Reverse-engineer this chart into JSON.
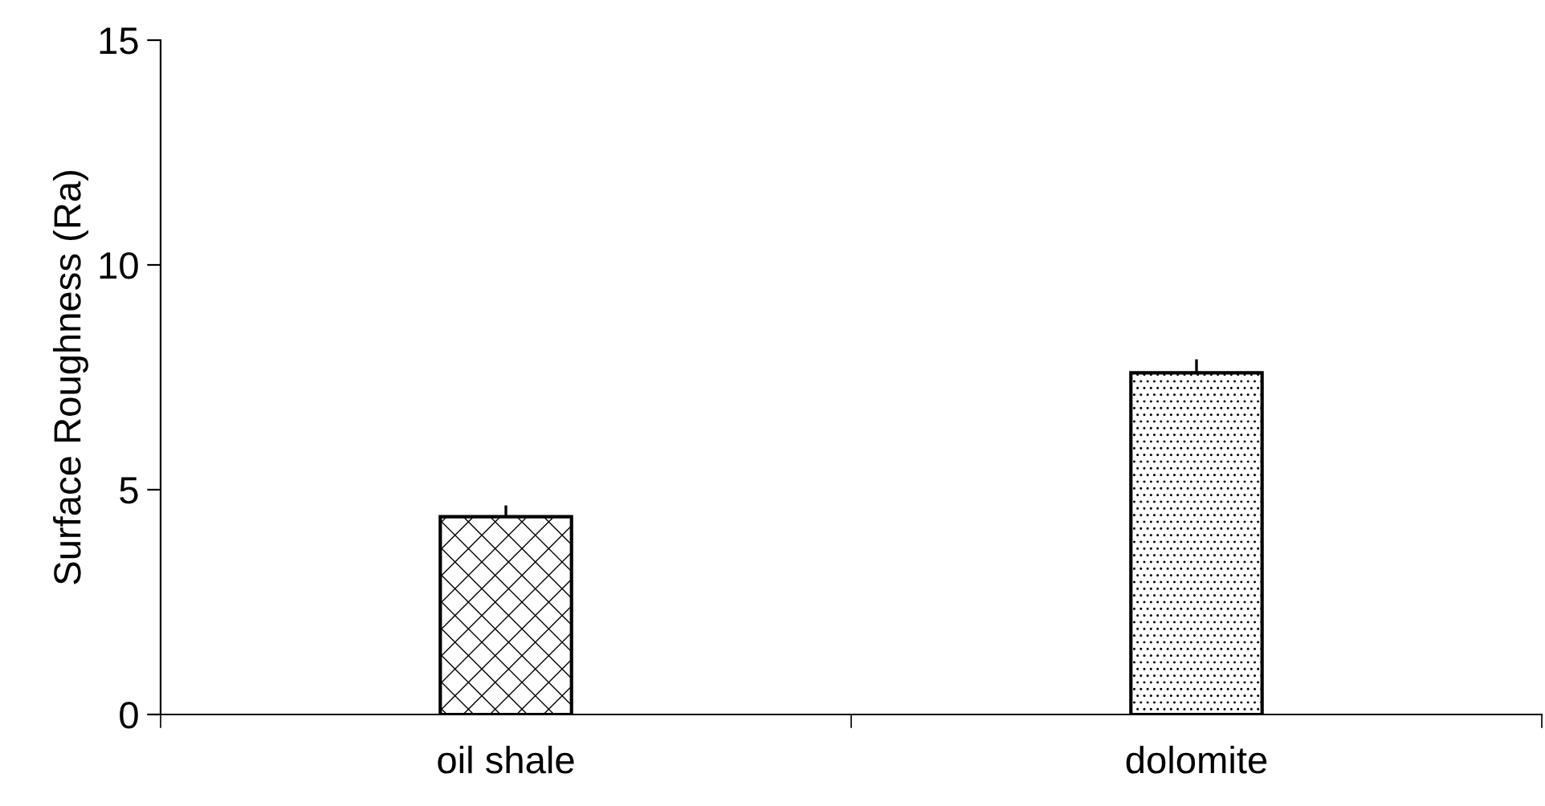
{
  "chart_data": {
    "type": "bar",
    "ylabel": "Surface Roughness (Ra)",
    "categories": [
      "oil shale",
      "dolomite"
    ],
    "values": [
      4.4,
      7.6
    ],
    "errors": [
      0.25,
      0.3
    ],
    "ylim": [
      0,
      15
    ],
    "yticks": [
      0,
      5,
      10,
      15
    ],
    "grid": false,
    "legend": false
  }
}
